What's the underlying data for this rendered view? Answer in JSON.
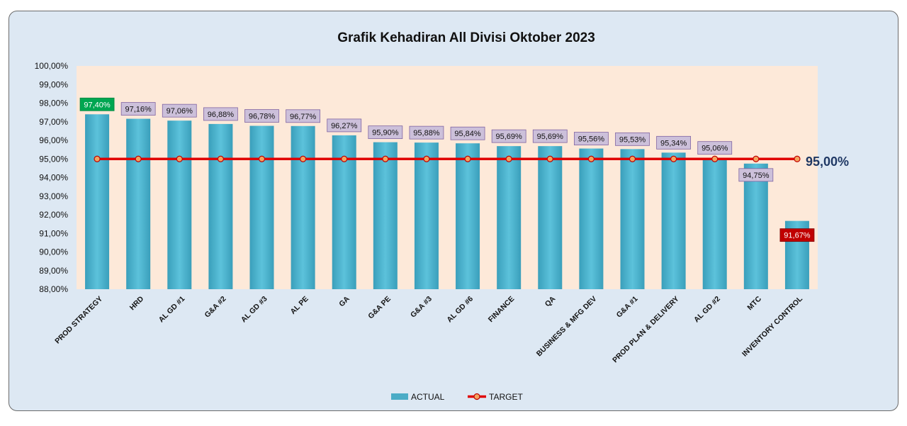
{
  "chart_data": {
    "type": "bar",
    "title": "Grafik Kehadiran All Divisi Oktober 2023",
    "categories": [
      "PROD STRATEGY",
      "HRD",
      "AL GD #1",
      "G&A #2",
      "AL GD #3",
      "AL PE",
      "GA",
      "G&A PE",
      "G&A #3",
      "AL GD #6",
      "FINANCE",
      "QA",
      "BUSINESS & MFG DEV",
      "G&A #1",
      "PROD PLAN & DELIVERY",
      "AL GD #2",
      "MTC",
      "INVENTORY CONTROL"
    ],
    "series": [
      {
        "name": "ACTUAL",
        "type": "bar",
        "values": [
          97.4,
          97.16,
          97.06,
          96.88,
          96.78,
          96.77,
          96.27,
          95.9,
          95.88,
          95.84,
          95.69,
          95.69,
          95.56,
          95.53,
          95.34,
          95.06,
          94.75,
          91.67
        ],
        "labels": [
          "97,40%",
          "97,16%",
          "97,06%",
          "96,88%",
          "96,78%",
          "96,77%",
          "96,27%",
          "95,90%",
          "95,88%",
          "95,84%",
          "95,69%",
          "95,69%",
          "95,56%",
          "95,53%",
          "95,34%",
          "95,06%",
          "94,75%",
          "91,67%"
        ]
      },
      {
        "name": "TARGET",
        "type": "line",
        "values": [
          95,
          95,
          95,
          95,
          95,
          95,
          95,
          95,
          95,
          95,
          95,
          95,
          95,
          95,
          95,
          95,
          95,
          95
        ]
      }
    ],
    "target_label": "95,00%",
    "ylim": [
      88,
      100
    ],
    "yticks": [
      88,
      89,
      90,
      91,
      92,
      93,
      94,
      95,
      96,
      97,
      98,
      99,
      100
    ],
    "ytick_labels": [
      "88,00%",
      "89,00%",
      "90,00%",
      "91,00%",
      "92,00%",
      "93,00%",
      "94,00%",
      "95,00%",
      "96,00%",
      "97,00%",
      "98,00%",
      "99,00%",
      "100,00%"
    ],
    "grid": false,
    "legend_position": "bottom",
    "colors": {
      "bar": "#4bacc6",
      "plot_bg": "#fde9d9",
      "target_line": "#e00000",
      "target_marker": "#f4a460",
      "label_bg": "#ccc0da",
      "label_best": "#00a651",
      "label_worst": "#c00000",
      "target_text": "#1f3864"
    }
  }
}
